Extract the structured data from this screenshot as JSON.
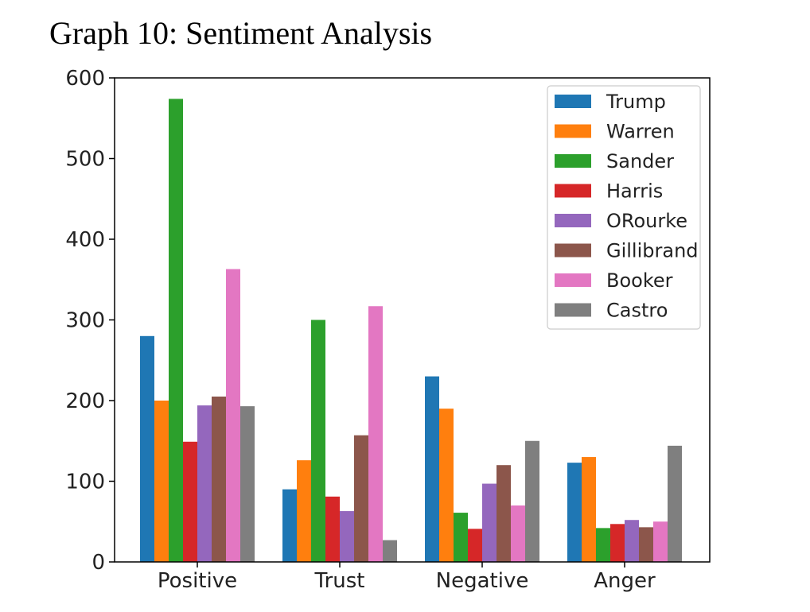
{
  "title": "Graph 10: Sentiment Analysis",
  "chart_data": {
    "type": "bar",
    "title": "Graph 10: Sentiment Analysis",
    "xlabel": "",
    "ylabel": "",
    "ylim": [
      0,
      600
    ],
    "yticks": [
      "0",
      "100",
      "200",
      "300",
      "400",
      "500",
      "600"
    ],
    "categories": [
      "Positive",
      "Trust",
      "Negative",
      "Anger"
    ],
    "legend_position": "top-right",
    "grid": false,
    "series": [
      {
        "name": "Trump",
        "color": "#1f77b4",
        "values": [
          280,
          90,
          230,
          123
        ]
      },
      {
        "name": "Warren",
        "color": "#ff7f0e",
        "values": [
          200,
          126,
          190,
          130
        ]
      },
      {
        "name": "Sander",
        "color": "#2ca02c",
        "values": [
          574,
          300,
          61,
          42
        ]
      },
      {
        "name": "Harris",
        "color": "#d62728",
        "values": [
          149,
          81,
          41,
          47
        ]
      },
      {
        "name": "ORourke",
        "color": "#9467bd",
        "values": [
          194,
          63,
          97,
          52
        ]
      },
      {
        "name": "Gillibrand",
        "color": "#8c564b",
        "values": [
          205,
          157,
          120,
          43
        ]
      },
      {
        "name": "Booker",
        "color": "#e377c2",
        "values": [
          363,
          317,
          70,
          50
        ]
      },
      {
        "name": "Castro",
        "color": "#7f7f7f",
        "values": [
          193,
          27,
          150,
          144
        ]
      }
    ]
  }
}
